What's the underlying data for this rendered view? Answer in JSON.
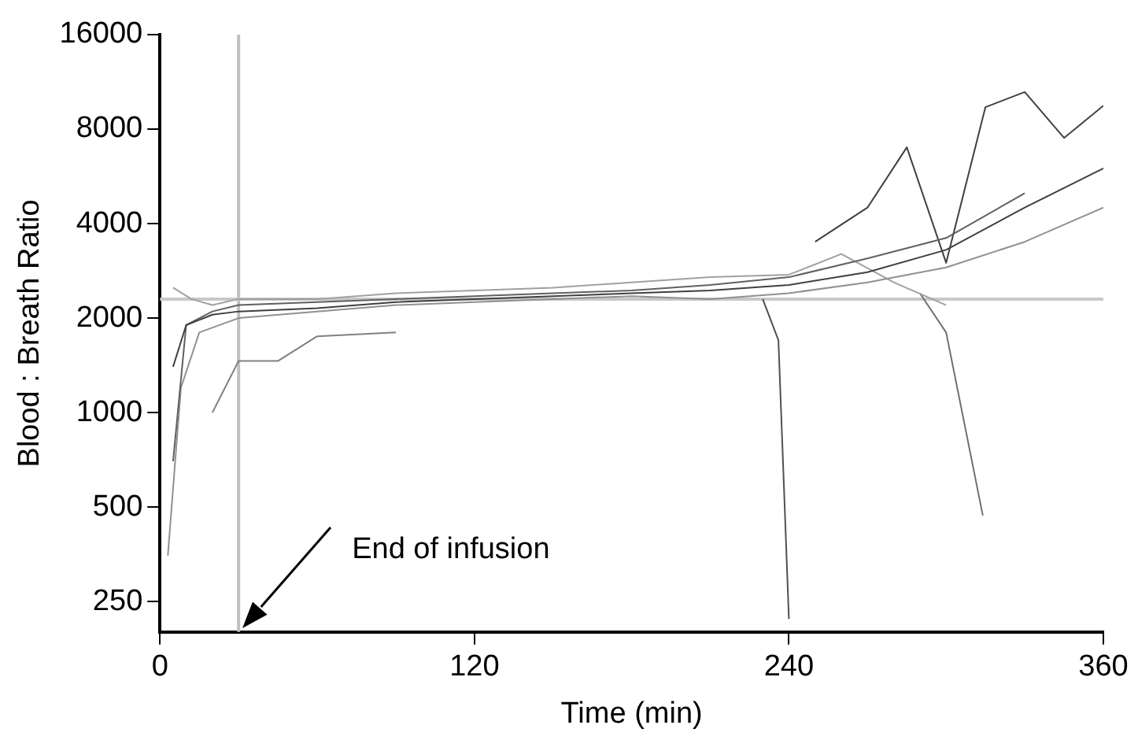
{
  "chart_data": {
    "type": "line",
    "xlabel": "Time (min)",
    "ylabel": "Blood : Breath Ratio",
    "log": "y",
    "xlim": [
      0,
      360
    ],
    "xticks": [
      0,
      120,
      240,
      360
    ],
    "ylim": [
      200,
      16000
    ],
    "yticks": [
      250,
      500,
      1000,
      2000,
      4000,
      8000,
      16000
    ],
    "grid": false,
    "legend": false,
    "marker": "none",
    "line_style": "solid",
    "ref_lines": [
      {
        "axis": "x",
        "value": 30,
        "color": "#c0c0c0"
      },
      {
        "axis": "y",
        "value": 2300,
        "color": "#c8c8c8"
      }
    ],
    "annotations": [
      "End of infusion"
    ],
    "series": [
      {
        "color": "#404040",
        "x": [
          5,
          10,
          20,
          30,
          60,
          90,
          120,
          150,
          180,
          210,
          240,
          270,
          300,
          330,
          360
        ],
        "values": [
          1400,
          1900,
          2050,
          2100,
          2150,
          2250,
          2300,
          2350,
          2400,
          2450,
          2550,
          2800,
          3300,
          4500,
          6000
        ]
      },
      {
        "color": "#606060",
        "x": [
          5,
          10,
          20,
          30,
          60,
          90,
          120,
          150,
          180,
          210,
          240,
          270,
          300,
          330
        ],
        "values": [
          700,
          1900,
          2100,
          2200,
          2250,
          2300,
          2350,
          2400,
          2450,
          2550,
          2700,
          3100,
          3600,
          5000
        ]
      },
      {
        "color": "#909090",
        "x": [
          3,
          8,
          15,
          30,
          60,
          90,
          120,
          150,
          180,
          210,
          240,
          270,
          300,
          330,
          360
        ],
        "values": [
          350,
          1200,
          1800,
          2000,
          2100,
          2200,
          2250,
          2300,
          2350,
          2300,
          2400,
          2600,
          2900,
          3500,
          4500
        ]
      },
      {
        "color": "#a0a0a0",
        "x": [
          5,
          12,
          20,
          30,
          60,
          90,
          120,
          150,
          180,
          210,
          240,
          260,
          280,
          300
        ],
        "values": [
          2500,
          2300,
          2200,
          2300,
          2300,
          2400,
          2450,
          2500,
          2600,
          2700,
          2750,
          3200,
          2600,
          2200
        ]
      },
      {
        "color": "#505050",
        "x": [
          230,
          236,
          240
        ],
        "values": [
          2300,
          1700,
          220
        ]
      },
      {
        "color": "#707070",
        "x": [
          290,
          300,
          314
        ],
        "values": [
          2400,
          1800,
          470
        ]
      },
      {
        "color": "#404040",
        "x": [
          250,
          270,
          285,
          300,
          315,
          330,
          345,
          360
        ],
        "values": [
          3500,
          4500,
          7000,
          3000,
          9400,
          10500,
          7500,
          9500
        ]
      },
      {
        "color": "#808080",
        "x": [
          20,
          30,
          45,
          60,
          90
        ],
        "values": [
          1000,
          1460,
          1460,
          1750,
          1800
        ]
      }
    ]
  }
}
